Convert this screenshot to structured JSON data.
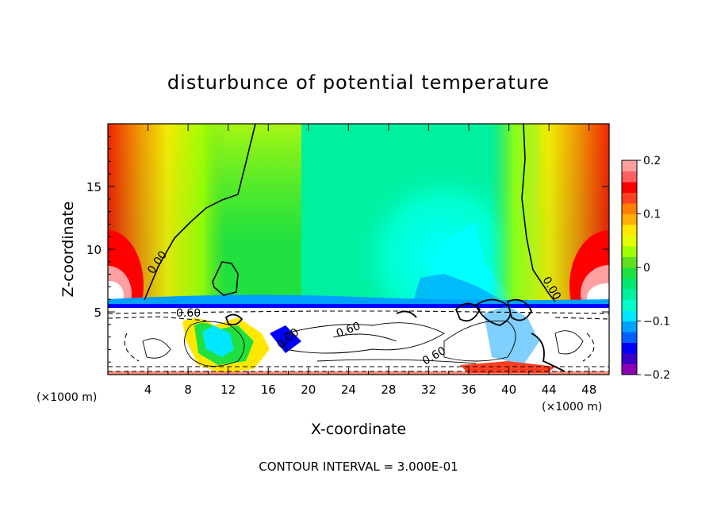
{
  "chart_data": {
    "type": "heatmap",
    "title": "disturbunce of potential temperature",
    "xlabel": "X-coordinate",
    "ylabel": "Z-coordinate",
    "x_unit_left": "(×1000 m)",
    "x_unit_right": "(×1000 m)",
    "xlim": [
      0,
      50
    ],
    "ylim": [
      0,
      20
    ],
    "x_ticks": [
      "4",
      "8",
      "12",
      "16",
      "20",
      "24",
      "28",
      "32",
      "36",
      "40",
      "44",
      "48"
    ],
    "y_ticks": [
      "5",
      "10",
      "15"
    ],
    "colorbar": {
      "range": [
        -0.2,
        0.2
      ],
      "tick_labels": [
        "0.2",
        "0.1",
        "0",
        "−0.1",
        "−0.2"
      ],
      "colors": [
        "#8b00b2",
        "#3c00c8",
        "#0000ff",
        "#0060ff",
        "#00a0ff",
        "#00e8ff",
        "#00ffc8",
        "#00f0a0",
        "#00e870",
        "#20e040",
        "#60e020",
        "#a0ff00",
        "#e0ff00",
        "#ffe800",
        "#ffb000",
        "#ff8000",
        "#ff4020",
        "#ff0000",
        "#ff6060",
        "#ffa0a0"
      ]
    },
    "contour_labels": [
      "0.00",
      "0.60",
      "0.00",
      "0.60",
      "0.60",
      "0.00"
    ],
    "contour_interval_text": "CONTOUR INTERVAL = 3.000E-01"
  }
}
